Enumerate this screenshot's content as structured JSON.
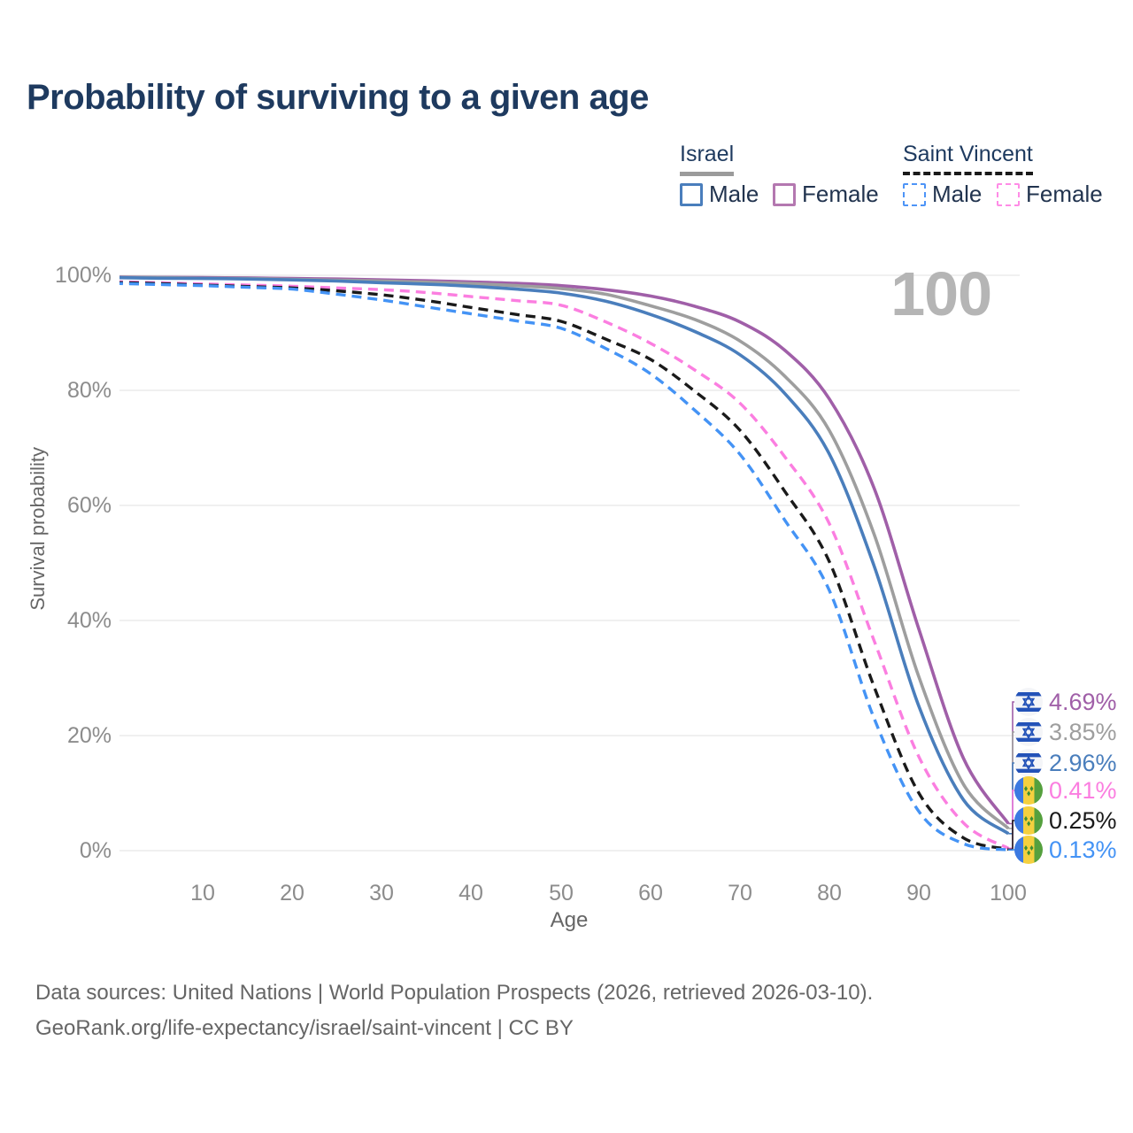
{
  "title": "Probability of surviving to a given age",
  "hover_age_indicator": "100",
  "legend": {
    "groups": [
      {
        "name": "Israel",
        "line_style": "solid",
        "underline_color": "#9b9b9b",
        "items": [
          {
            "label": "Male",
            "color": "#4a7ebc"
          },
          {
            "label": "Female",
            "color": "#b478b0"
          }
        ]
      },
      {
        "name": "Saint Vincent",
        "line_style": "dashed",
        "underline_color": "#1a1a1a",
        "items": [
          {
            "label": "Male",
            "color": "#4d94f7"
          },
          {
            "label": "Female",
            "color": "#ff8ce6"
          }
        ]
      }
    ]
  },
  "chart_data": {
    "type": "line",
    "title": "Probability of surviving to a given age",
    "xlabel": "Age",
    "ylabel": "Survival probability",
    "xlim": [
      0,
      100
    ],
    "ylim": [
      0,
      100
    ],
    "grid": "horizontal",
    "x_tick_labels": [
      "10",
      "20",
      "30",
      "40",
      "50",
      "60",
      "70",
      "80",
      "90",
      "100"
    ],
    "y_tick_labels": [
      "100%",
      "80%",
      "60%",
      "40%",
      "20%",
      "0%"
    ],
    "x": [
      0,
      5,
      10,
      15,
      20,
      25,
      30,
      35,
      40,
      45,
      50,
      55,
      60,
      65,
      70,
      75,
      80,
      85,
      90,
      95,
      100
    ],
    "series": [
      {
        "name": "Israel Female",
        "country": "Israel",
        "sex": "female",
        "color": "#a05fa8",
        "dash": false,
        "end_label": "4.69%",
        "values": [
          99.7,
          99.65,
          99.6,
          99.55,
          99.45,
          99.35,
          99.2,
          99.05,
          98.85,
          98.6,
          98.2,
          97.5,
          96.4,
          94.6,
          91.9,
          87.0,
          78.5,
          63.0,
          38.5,
          16.0,
          4.69
        ]
      },
      {
        "name": "Israel Both sexes",
        "country": "Israel",
        "sex": "both",
        "color": "#9e9e9e",
        "dash": false,
        "end_label": "3.85%",
        "values": [
          99.65,
          99.6,
          99.5,
          99.45,
          99.3,
          99.15,
          99.0,
          98.8,
          98.55,
          98.2,
          97.7,
          96.7,
          94.7,
          92.3,
          88.6,
          82.5,
          73.0,
          55.0,
          30.2,
          11.5,
          3.85
        ]
      },
      {
        "name": "Israel Male",
        "country": "Israel",
        "sex": "male",
        "color": "#4a7ebc",
        "dash": false,
        "end_label": "2.96%",
        "values": [
          99.6,
          99.5,
          99.45,
          99.35,
          99.2,
          99.0,
          98.7,
          98.45,
          98.1,
          97.6,
          96.9,
          95.5,
          93.2,
          90.2,
          86.2,
          79.5,
          68.9,
          49.5,
          25.1,
          8.8,
          2.96
        ]
      },
      {
        "name": "Saint Vincent Female",
        "country": "Saint Vincent",
        "sex": "female",
        "color": "#fb7ee0",
        "dash": true,
        "end_label": "0.41%",
        "values": [
          98.9,
          98.7,
          98.5,
          98.3,
          98.1,
          97.8,
          97.5,
          97.0,
          96.3,
          95.6,
          94.8,
          91.9,
          88.2,
          83.5,
          77.8,
          68.5,
          56.8,
          36.5,
          16.3,
          4.8,
          0.41
        ]
      },
      {
        "name": "Saint Vincent Both sexes",
        "country": "Saint Vincent",
        "sex": "both",
        "color": "#1a1a1a",
        "dash": true,
        "end_label": "0.25%",
        "values": [
          98.75,
          98.55,
          98.3,
          98.05,
          97.8,
          97.3,
          96.6,
          95.6,
          94.4,
          93.2,
          92.0,
          88.9,
          85.4,
          79.8,
          73.1,
          62.5,
          50.2,
          28.5,
          10.0,
          2.2,
          0.25
        ]
      },
      {
        "name": "Saint Vincent Male",
        "country": "Saint Vincent",
        "sex": "male",
        "color": "#4493f5",
        "dash": true,
        "end_label": "0.13%",
        "values": [
          98.6,
          98.4,
          98.2,
          97.9,
          97.6,
          96.7,
          95.7,
          94.5,
          93.3,
          92.1,
          90.8,
          87.3,
          82.9,
          76.5,
          68.9,
          57.5,
          45.2,
          23.0,
          6.8,
          1.2,
          0.13
        ]
      }
    ]
  },
  "footer": {
    "line1": "Data sources: United Nations | World Population Prospects (2026, retrieved 2026-03-10).",
    "line2": "GeoRank.org/life-expectancy/israel/saint-vincent | CC BY"
  }
}
